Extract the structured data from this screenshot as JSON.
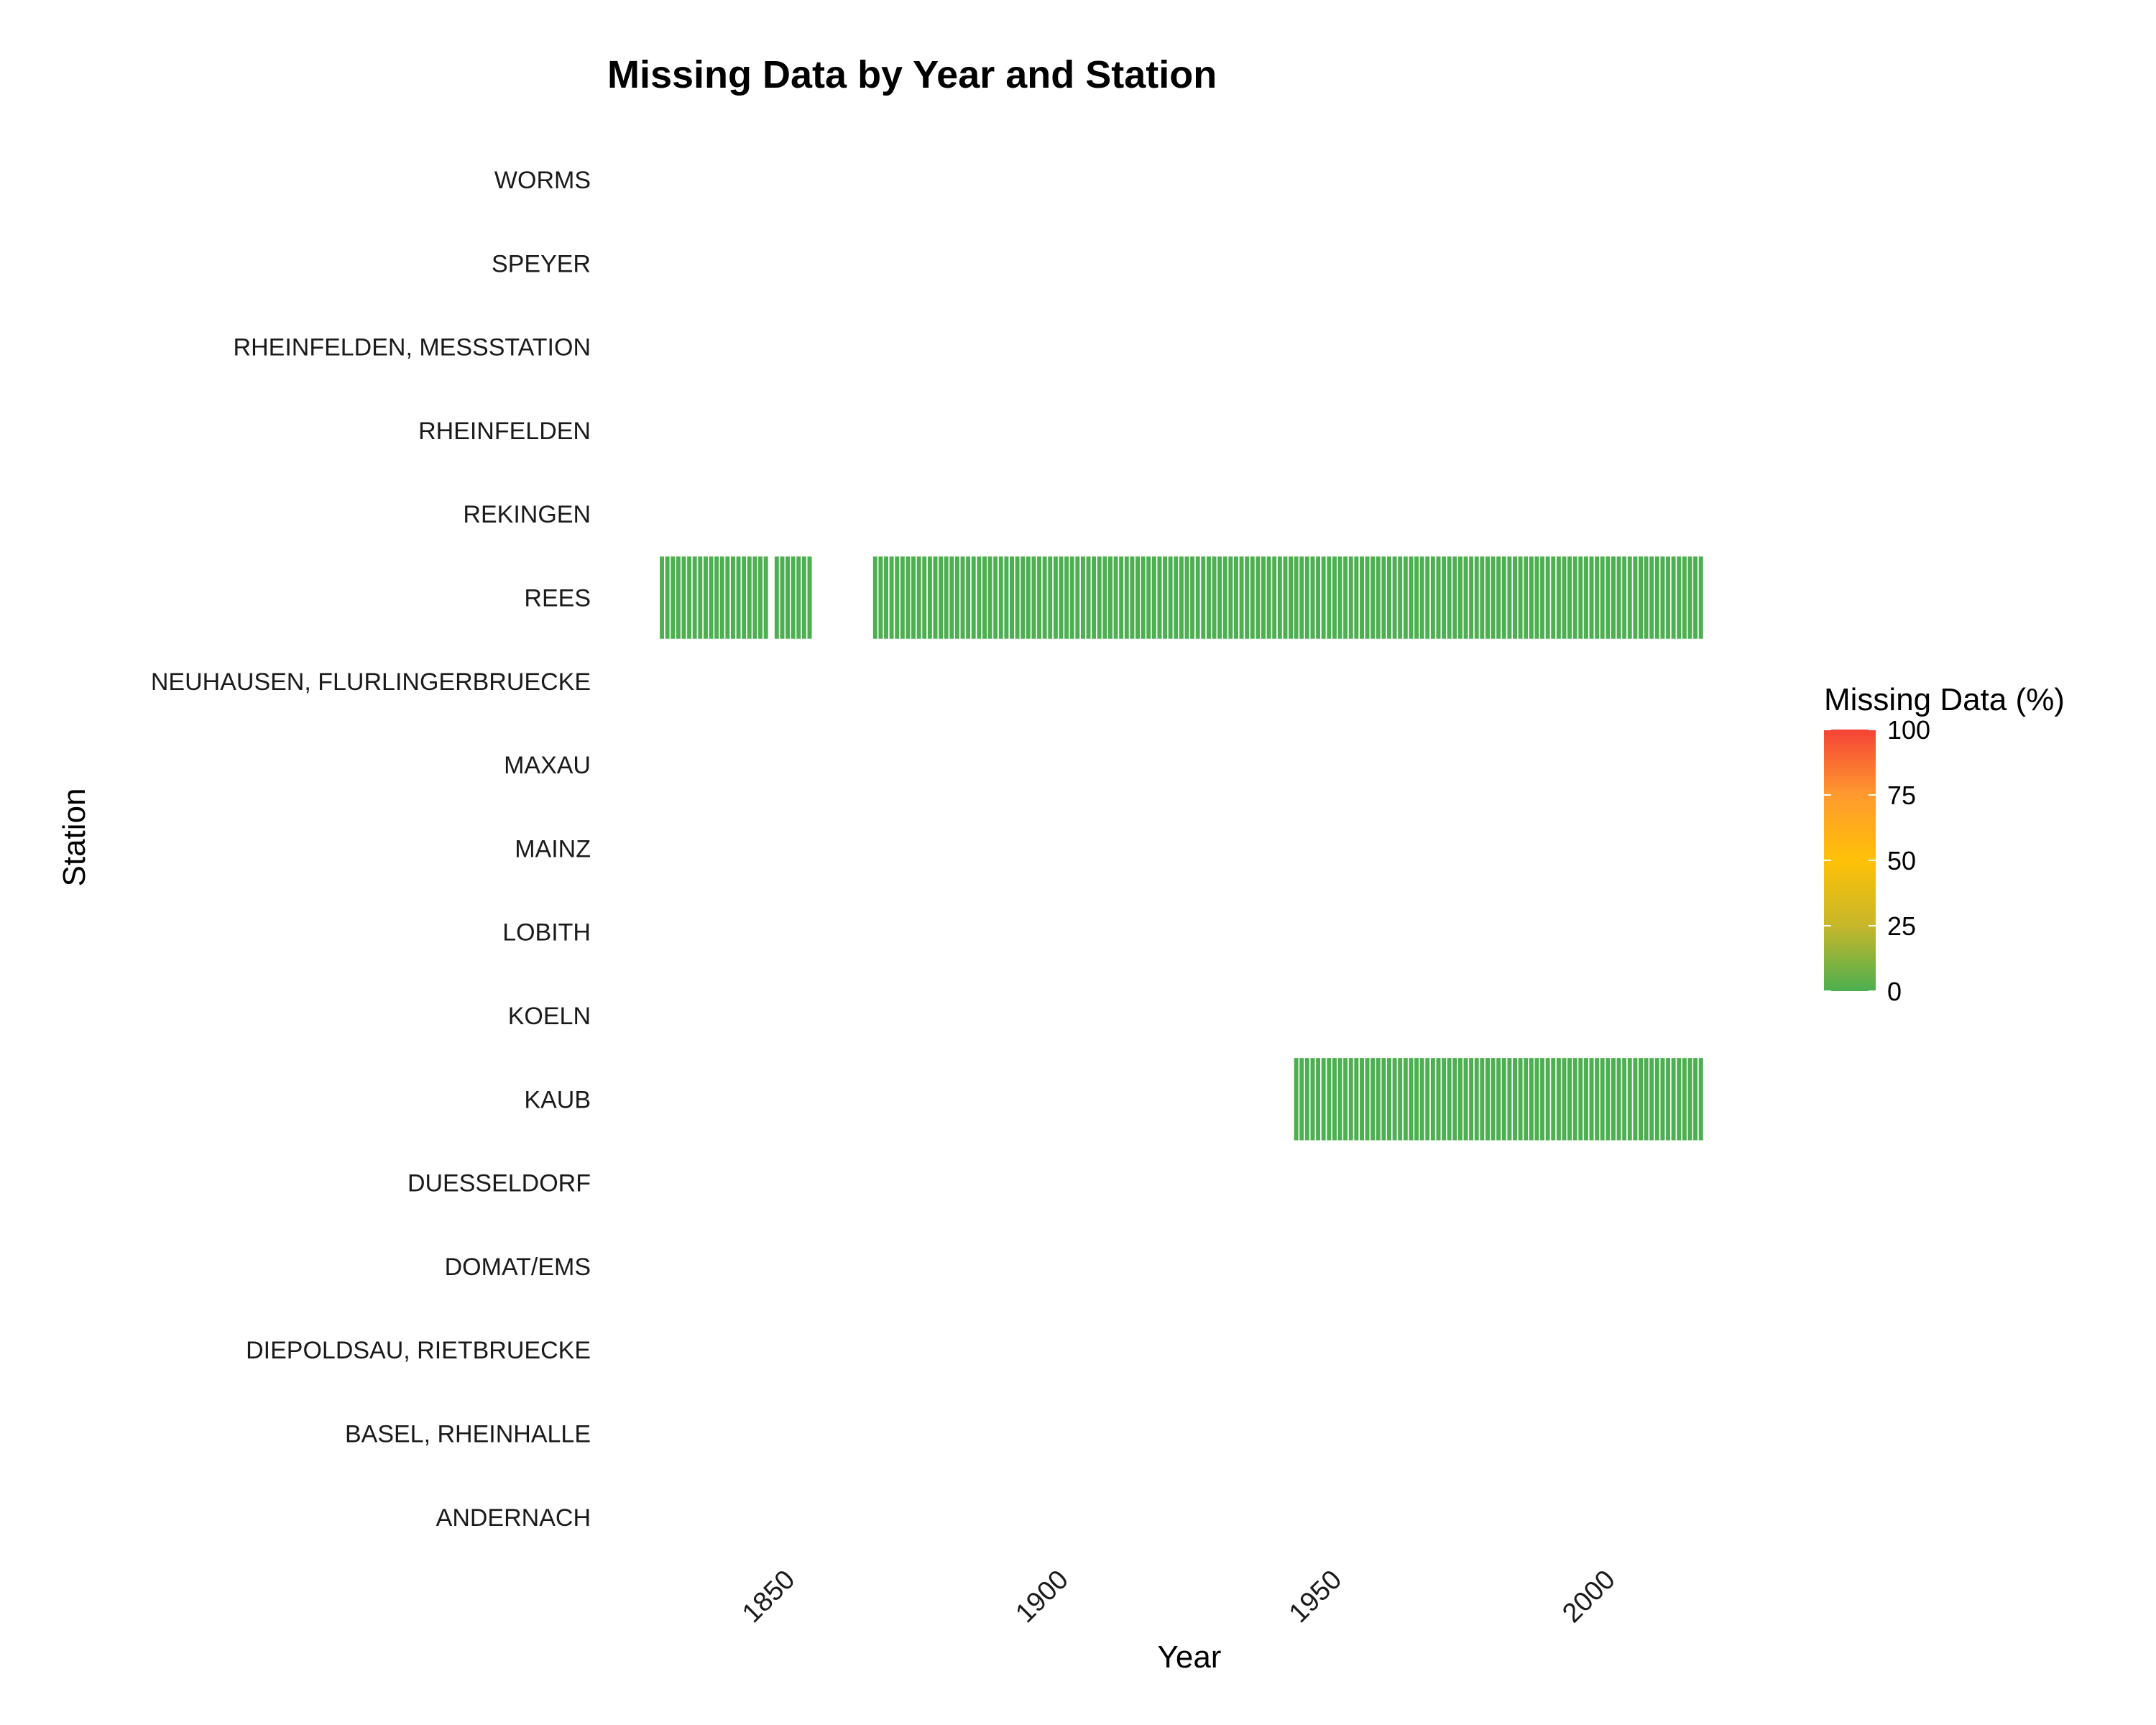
{
  "chart_data": {
    "type": "heatmap",
    "title": "Missing Data by Year and Station",
    "xlabel": "Year",
    "ylabel": "Station",
    "xlim": [
      1817,
      2024
    ],
    "x_ticks": [
      1850,
      1900,
      1950,
      2000
    ],
    "stations": [
      "WORMS",
      "SPEYER",
      "RHEINFELDEN, MESSSTATION",
      "RHEINFELDEN",
      "REKINGEN",
      "REES",
      "NEUHAUSEN, FLURLINGERBRUECKE",
      "MAXAU",
      "MAINZ",
      "LOBITH",
      "KOELN",
      "KAUB",
      "DUESSELDORF",
      "DOMAT/EMS",
      "DIEPOLDSAU, RIETBRUECKE",
      "BASEL, RHEINHALLE",
      "ANDERNACH"
    ],
    "cells": [
      {
        "station": "REES",
        "year_ranges": [
          [
            1827,
            1846
          ],
          [
            1848,
            1854
          ],
          [
            1866,
            2017
          ]
        ],
        "missing_pct": 0
      },
      {
        "station": "KAUB",
        "year_ranges": [
          [
            1943,
            2017
          ]
        ],
        "missing_pct": 0
      }
    ],
    "legend": {
      "title": "Missing Data (%)",
      "ticks": [
        0,
        25,
        50,
        75,
        100
      ],
      "colors": [
        "#4caf50",
        "#c6b72a",
        "#ffc107",
        "#ff9a2f",
        "#f44336"
      ],
      "placement": "right"
    },
    "cell_color": "#4caf50",
    "grid": false
  }
}
